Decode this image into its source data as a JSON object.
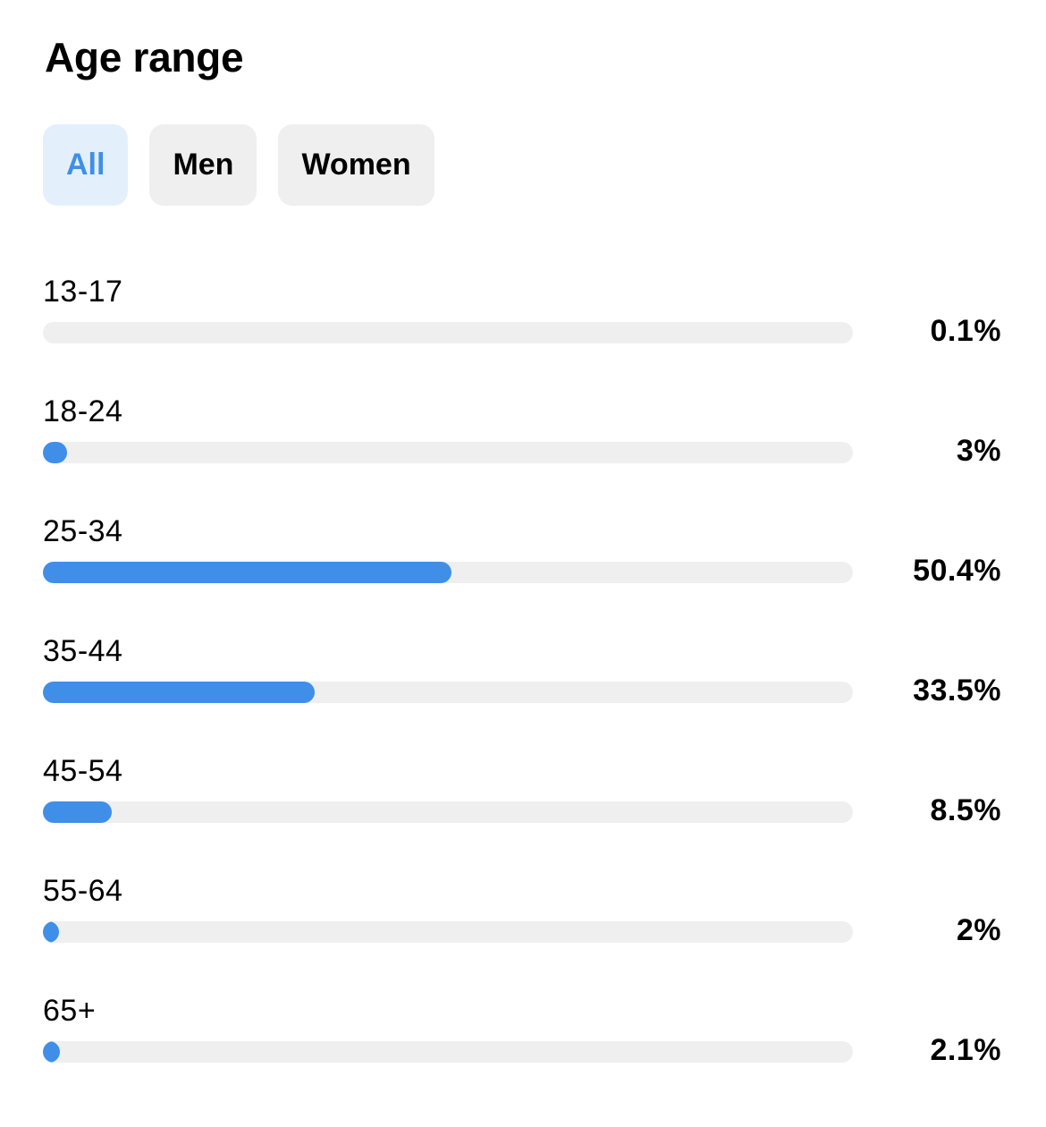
{
  "title": "Age range",
  "tabs": [
    {
      "label": "All",
      "active": true
    },
    {
      "label": "Men",
      "active": false
    },
    {
      "label": "Women",
      "active": false
    }
  ],
  "colors": {
    "accent": "#3f8fe9",
    "active_tab_bg": "#e3f0fc",
    "tab_bg": "#efefef",
    "track": "#efefef"
  },
  "chart_data": {
    "type": "bar",
    "orientation": "horizontal",
    "title": "Age range",
    "categories": [
      "13-17",
      "18-24",
      "25-34",
      "35-44",
      "45-54",
      "55-64",
      "65+"
    ],
    "values": [
      0.1,
      3,
      50.4,
      33.5,
      8.5,
      2,
      2.1
    ],
    "value_labels": [
      "0.1%",
      "3%",
      "50.4%",
      "33.5%",
      "8.5%",
      "2%",
      "2.1%"
    ],
    "unit": "%",
    "xlim": [
      0,
      100
    ],
    "grid": false,
    "legend": "none"
  }
}
